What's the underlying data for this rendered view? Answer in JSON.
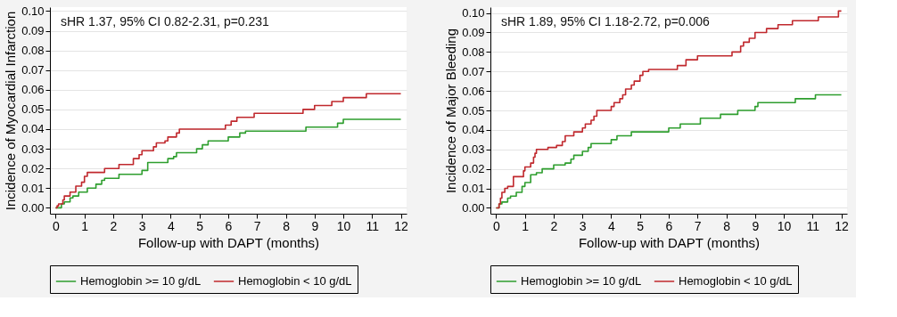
{
  "chart_data": [
    {
      "type": "step",
      "xlabel": "Follow-up with DAPT (months)",
      "ylabel": "Incidence of Myocardial Infarction",
      "annotations": [
        "sHR 1.37, 95% CI 0.82-2.31, p=0.231"
      ],
      "xlim": [
        -0.2,
        12.2
      ],
      "xticks": [
        0,
        1,
        2,
        3,
        4,
        5,
        6,
        7,
        8,
        9,
        10,
        11,
        12
      ],
      "ylim": [
        -0.003,
        0.102
      ],
      "yticks": [
        {
          "value": 0,
          "label": "0.00"
        },
        {
          "value": 0.01,
          "label": "0.01"
        },
        {
          "value": 0.02,
          "label": "0.02"
        },
        {
          "value": 0.03,
          "label": "0.03"
        },
        {
          "value": 0.04,
          "label": "0.04"
        },
        {
          "value": 0.05,
          "label": "0.05"
        },
        {
          "value": 0.06,
          "label": "0.06"
        },
        {
          "value": 0.07,
          "label": "0.07"
        },
        {
          "value": 0.08,
          "label": "0.08"
        },
        {
          "value": 0.09,
          "label": "0.09"
        },
        {
          "value": 0.1,
          "label": "0.10"
        }
      ],
      "grid": "y",
      "legend": "bottom",
      "series": [
        {
          "name": "Hemoglobin >= 10 g/dL",
          "color": "#2e9e2e",
          "x": [
            0,
            0.2,
            0.3,
            0.5,
            0.6,
            0.8,
            1.1,
            1.4,
            1.6,
            1.7,
            2.2,
            3.0,
            3.2,
            3.9,
            4.1,
            4.2,
            4.9,
            5.1,
            5.3,
            6.0,
            6.4,
            6.6,
            8.7,
            9.8,
            10.0,
            12
          ],
          "values": [
            0,
            0.002,
            0.003,
            0.005,
            0.006,
            0.008,
            0.01,
            0.012,
            0.014,
            0.015,
            0.017,
            0.019,
            0.023,
            0.025,
            0.026,
            0.028,
            0.03,
            0.032,
            0.034,
            0.036,
            0.038,
            0.039,
            0.041,
            0.043,
            0.045,
            0.045
          ]
        },
        {
          "name": "Hemoglobin < 10 g/dL",
          "color": "#c0282d",
          "x": [
            0,
            0.05,
            0.1,
            0.25,
            0.3,
            0.5,
            0.7,
            0.9,
            1.0,
            1.1,
            1.7,
            2.2,
            2.7,
            2.9,
            3.0,
            3.4,
            3.5,
            3.8,
            3.9,
            4.2,
            4.3,
            5.9,
            6.1,
            6.3,
            6.9,
            8.6,
            9.0,
            9.6,
            10.0,
            10.8,
            12
          ],
          "values": [
            0,
            0.001,
            0.002,
            0.004,
            0.006,
            0.008,
            0.011,
            0.013,
            0.016,
            0.018,
            0.02,
            0.022,
            0.025,
            0.027,
            0.029,
            0.031,
            0.033,
            0.034,
            0.036,
            0.038,
            0.04,
            0.042,
            0.044,
            0.046,
            0.048,
            0.05,
            0.052,
            0.054,
            0.056,
            0.058,
            0.058
          ]
        }
      ]
    },
    {
      "type": "step",
      "xlabel": "Follow-up with DAPT (months)",
      "ylabel": "Incidence of Major Bleeding",
      "annotations": [
        "sHR 1.89, 95% CI 1.18-2.72, p=0.006"
      ],
      "xlim": [
        -0.2,
        12.2
      ],
      "xticks": [
        0,
        1,
        2,
        3,
        4,
        5,
        6,
        7,
        8,
        9,
        10,
        11,
        12
      ],
      "ylim": [
        -0.003,
        0.103
      ],
      "yticks": [
        {
          "value": 0,
          "label": "0.00"
        },
        {
          "value": 0.01,
          "label": "0.01"
        },
        {
          "value": 0.02,
          "label": "0.02"
        },
        {
          "value": 0.03,
          "label": "0.03"
        },
        {
          "value": 0.04,
          "label": "0.04"
        },
        {
          "value": 0.05,
          "label": "0.05"
        },
        {
          "value": 0.06,
          "label": "0.06"
        },
        {
          "value": 0.07,
          "label": "0.07"
        },
        {
          "value": 0.08,
          "label": "0.08"
        },
        {
          "value": 0.09,
          "label": "0.09"
        },
        {
          "value": 0.1,
          "label": "0.10"
        }
      ],
      "grid": "y",
      "legend": "bottom",
      "series": [
        {
          "name": "Hemoglobin >= 10 g/dL",
          "color": "#2e9e2e",
          "x": [
            0,
            0.1,
            0.2,
            0.4,
            0.5,
            0.7,
            0.9,
            1.0,
            1.2,
            1.4,
            1.6,
            2.0,
            2.4,
            2.6,
            2.7,
            3.0,
            3.2,
            3.3,
            4.0,
            4.2,
            4.7,
            6.0,
            6.4,
            7.1,
            7.8,
            8.4,
            9.0,
            9.1,
            10.4,
            11.1,
            12
          ],
          "values": [
            0,
            0.002,
            0.003,
            0.005,
            0.006,
            0.008,
            0.011,
            0.013,
            0.017,
            0.018,
            0.02,
            0.022,
            0.023,
            0.025,
            0.027,
            0.029,
            0.031,
            0.033,
            0.035,
            0.037,
            0.039,
            0.041,
            0.043,
            0.046,
            0.048,
            0.05,
            0.052,
            0.054,
            0.056,
            0.058,
            0.058
          ]
        },
        {
          "name": "Hemoglobin < 10 g/dL",
          "color": "#c0282d",
          "x": [
            0,
            0.1,
            0.15,
            0.2,
            0.3,
            0.4,
            0.6,
            0.95,
            1.0,
            1.2,
            1.3,
            1.35,
            1.4,
            1.8,
            2.1,
            2.3,
            2.4,
            2.7,
            3.0,
            3.1,
            3.3,
            3.4,
            3.5,
            4.0,
            4.1,
            4.3,
            4.4,
            4.5,
            4.7,
            4.8,
            5.0,
            5.1,
            5.3,
            6.3,
            6.6,
            7.0,
            8.2,
            8.5,
            8.6,
            8.8,
            9.0,
            9.4,
            9.8,
            10.3,
            11.2,
            11.9,
            12
          ],
          "values": [
            0,
            0.002,
            0.005,
            0.008,
            0.01,
            0.011,
            0.016,
            0.019,
            0.021,
            0.023,
            0.026,
            0.028,
            0.03,
            0.031,
            0.032,
            0.034,
            0.037,
            0.039,
            0.041,
            0.043,
            0.045,
            0.047,
            0.05,
            0.052,
            0.054,
            0.056,
            0.058,
            0.061,
            0.063,
            0.065,
            0.068,
            0.07,
            0.071,
            0.073,
            0.076,
            0.078,
            0.08,
            0.083,
            0.085,
            0.087,
            0.09,
            0.092,
            0.094,
            0.096,
            0.098,
            0.101,
            0.101
          ]
        }
      ]
    }
  ]
}
